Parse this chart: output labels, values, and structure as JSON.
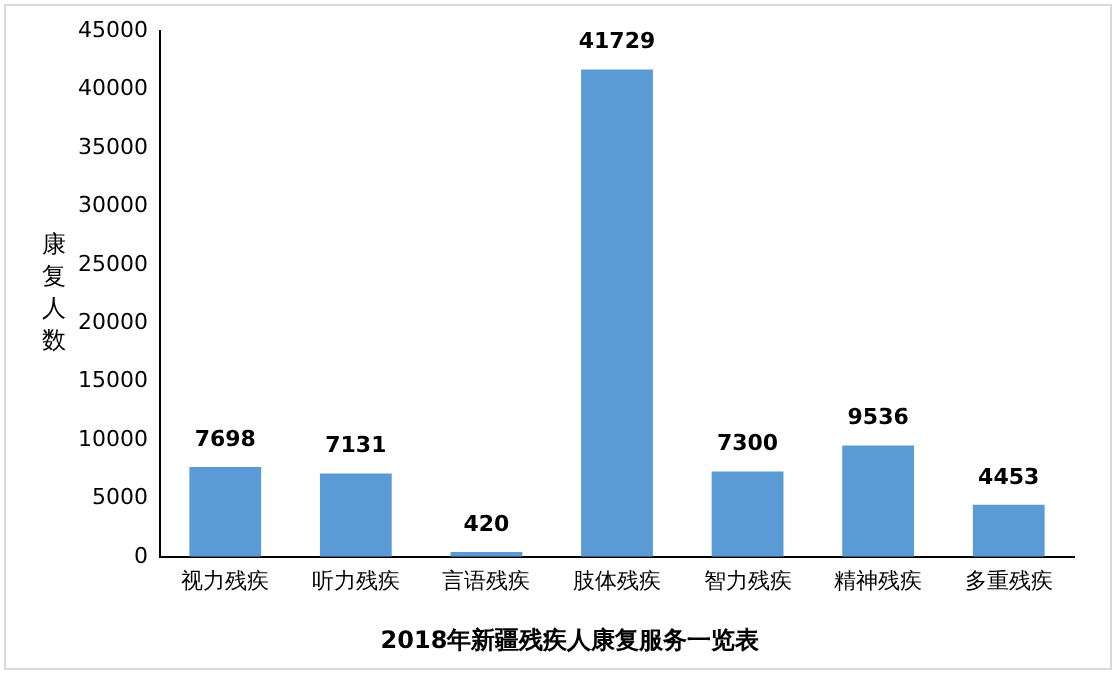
{
  "chart_data": {
    "type": "bar",
    "title": "2018年新疆残疾人康复服务一览表",
    "ylabel": "康复人数",
    "categories": [
      "视力残疾",
      "听力残疾",
      "言语残疾",
      "肢体残疾",
      "智力残疾",
      "精神残疾",
      "多重残疾"
    ],
    "values": [
      7698,
      7131,
      420,
      41729,
      7300,
      9536,
      4453
    ],
    "color": "#5b9bd5",
    "ylim": [
      0,
      45000
    ],
    "yticks": [
      0,
      5000,
      10000,
      15000,
      20000,
      25000,
      30000,
      35000,
      40000,
      45000
    ],
    "grid": false,
    "legend": false,
    "data_labels": true
  }
}
